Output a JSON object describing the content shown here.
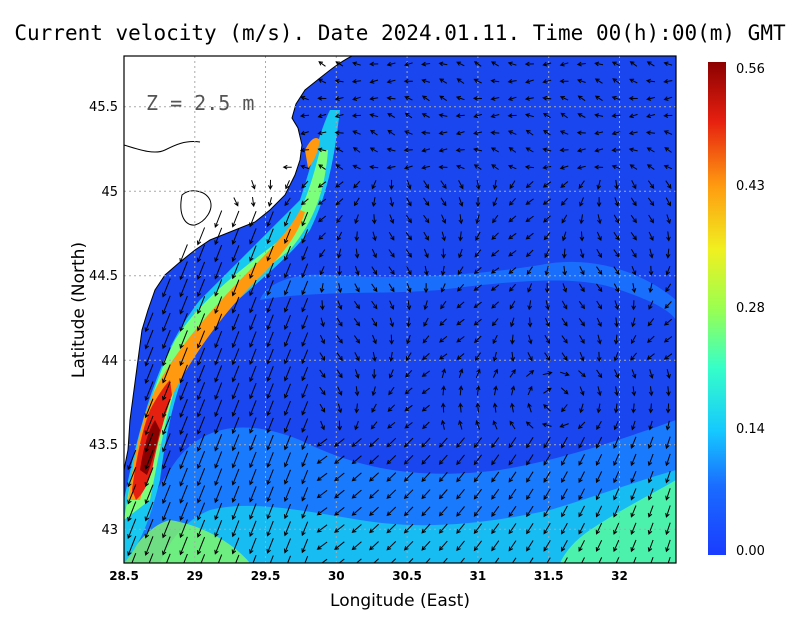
{
  "chart_data": {
    "type": "vector-field",
    "title": "Current velocity (m/s). Date 2024.01.11. Time 00(h):00(m) GMT",
    "annotation": "Z = 2.5 m",
    "xlabel": "Longitude (East)",
    "ylabel": "Latitude (North)",
    "xlim": [
      28.5,
      32.4
    ],
    "ylim": [
      42.8,
      45.8
    ],
    "x_ticks": [
      "28.5",
      "29",
      "29.5",
      "30",
      "30.5",
      "31",
      "31.5",
      "32"
    ],
    "y_ticks": [
      "43",
      "43.5",
      "44",
      "44.5",
      "45",
      "45.5"
    ],
    "grid": true,
    "colorbar": {
      "min": 0.0,
      "max": 0.56,
      "tick_labels": [
        "0.00",
        "0.14",
        "0.28",
        "0.43",
        "0.56"
      ],
      "tick_values": [
        0.0,
        0.14,
        0.28,
        0.43,
        0.56
      ]
    },
    "colors": {
      "land": "#ffffff",
      "coastline": "#000000",
      "low": "#1a46f0",
      "high": "#8b0000"
    }
  }
}
